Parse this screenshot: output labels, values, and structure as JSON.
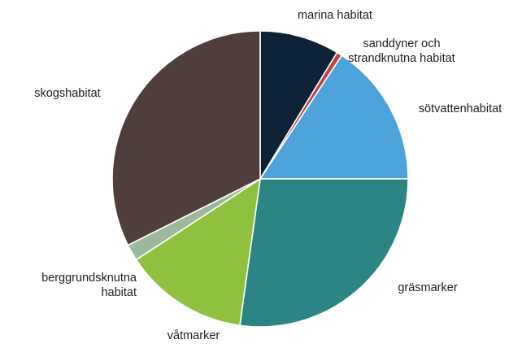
{
  "chart_data": {
    "type": "pie",
    "title": "",
    "start_angle_deg": 0,
    "direction": "clockwise",
    "slices": [
      {
        "label": [
          "marina habitat"
        ],
        "value": 8.7,
        "color": "#0d2236"
      },
      {
        "label": [
          "sanddyner och",
          "strandknutna habitat"
        ],
        "value": 0.6,
        "color": "#b5473f"
      },
      {
        "label": [
          "sötvattenhabitat"
        ],
        "value": 15.7,
        "color": "#4ba3d9"
      },
      {
        "label": [
          "gräsmarker"
        ],
        "value": 27.2,
        "color": "#2c8585"
      },
      {
        "label": [
          "våtmarker"
        ],
        "value": 13.6,
        "color": "#8fc13e"
      },
      {
        "label": [
          "berggrundsknutna",
          "habitat"
        ],
        "value": 1.8,
        "color": "#9cb89b"
      },
      {
        "label": [
          "skogshabitat"
        ],
        "value": 32.4,
        "color": "#4f3e3b"
      }
    ]
  }
}
